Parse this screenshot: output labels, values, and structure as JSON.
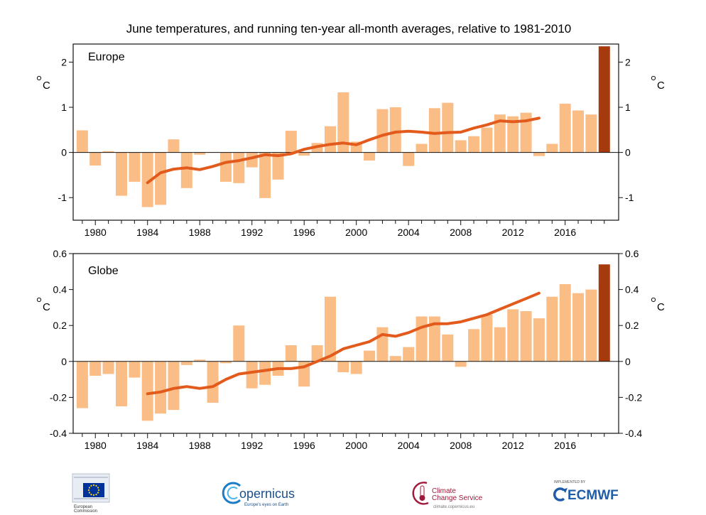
{
  "colors": {
    "bar": "#fbbd86",
    "bar_highlight": "#a63a0c",
    "running_line": "#e25a1c",
    "axis": "#111111",
    "eu_blue": "#003399",
    "eu_star": "#ffdd00",
    "ecmwf_blue": "#1f5da8",
    "c3s_red": "#a0193a"
  },
  "chart_data": [
    {
      "type": "bar",
      "title": "June temperatures, and running ten-year all-month averages, relative to 1981-2010",
      "panel_label": "Europe",
      "ylabel": "°C",
      "ylim": [
        -1.5,
        2.4
      ],
      "yticks": [
        -1,
        0,
        1,
        2
      ],
      "ytick_labels": [
        "-1",
        "0",
        "1",
        "2"
      ],
      "xticks": [
        1980,
        1984,
        1988,
        1992,
        1996,
        2000,
        2004,
        2008,
        2012,
        2016
      ],
      "xtick_labels": [
        "1980",
        "1984",
        "1988",
        "1992",
        "1996",
        "2000",
        "2004",
        "2008",
        "2012",
        "2016"
      ],
      "grid": false,
      "legend": "none",
      "years": [
        1979,
        1980,
        1981,
        1982,
        1983,
        1984,
        1985,
        1986,
        1987,
        1988,
        1989,
        1990,
        1991,
        1992,
        1993,
        1994,
        1995,
        1996,
        1997,
        1998,
        1999,
        2000,
        2001,
        2002,
        2003,
        2004,
        2005,
        2006,
        2007,
        2008,
        2009,
        2010,
        2011,
        2012,
        2013,
        2014,
        2015,
        2016,
        2017,
        2018,
        2019
      ],
      "values": [
        0.49,
        -0.29,
        0.03,
        -0.96,
        -0.65,
        -1.21,
        -1.16,
        0.29,
        -0.79,
        -0.05,
        0.01,
        -0.65,
        -0.68,
        -0.33,
        -1.01,
        -0.6,
        0.48,
        -0.07,
        0.21,
        0.58,
        1.33,
        0.24,
        -0.18,
        0.96,
        1.0,
        -0.3,
        0.19,
        0.98,
        1.1,
        0.27,
        0.36,
        0.55,
        0.84,
        0.8,
        0.88,
        -0.08,
        0.19,
        1.08,
        0.93,
        0.84,
        2.35
      ],
      "highlight_year": 2019,
      "running_average": {
        "x": [
          1984,
          1985,
          1986,
          1987,
          1988,
          1989,
          1990,
          1991,
          1992,
          1993,
          1994,
          1995,
          1996,
          1997,
          1998,
          1999,
          2000,
          2001,
          2002,
          2003,
          2004,
          2005,
          2006,
          2007,
          2008,
          2009,
          2010,
          2011,
          2012,
          2013,
          2014
        ],
        "y": [
          -0.67,
          -0.45,
          -0.37,
          -0.34,
          -0.38,
          -0.31,
          -0.22,
          -0.18,
          -0.12,
          -0.05,
          -0.07,
          -0.03,
          0.07,
          0.13,
          0.18,
          0.21,
          0.17,
          0.28,
          0.38,
          0.45,
          0.47,
          0.45,
          0.42,
          0.44,
          0.45,
          0.54,
          0.61,
          0.7,
          0.68,
          0.7,
          0.76
        ]
      }
    },
    {
      "type": "bar",
      "panel_label": "Globe",
      "ylabel": "°C",
      "ylim": [
        -0.4,
        0.6
      ],
      "yticks": [
        -0.4,
        -0.2,
        0,
        0.2,
        0.4,
        0.6
      ],
      "ytick_labels": [
        "-0.4",
        "-0.2",
        "0",
        "0.2",
        "0.4",
        "0.6"
      ],
      "xticks": [
        1980,
        1984,
        1988,
        1992,
        1996,
        2000,
        2004,
        2008,
        2012,
        2016
      ],
      "xtick_labels": [
        "1980",
        "1984",
        "1988",
        "1992",
        "1996",
        "2000",
        "2004",
        "2008",
        "2012",
        "2016"
      ],
      "grid": false,
      "legend": "none",
      "years": [
        1979,
        1980,
        1981,
        1982,
        1983,
        1984,
        1985,
        1986,
        1987,
        1988,
        1989,
        1990,
        1991,
        1992,
        1993,
        1994,
        1995,
        1996,
        1997,
        1998,
        1999,
        2000,
        2001,
        2002,
        2003,
        2004,
        2005,
        2006,
        2007,
        2008,
        2009,
        2010,
        2011,
        2012,
        2013,
        2014,
        2015,
        2016,
        2017,
        2018,
        2019
      ],
      "values": [
        -0.26,
        -0.08,
        -0.07,
        -0.25,
        -0.09,
        -0.33,
        -0.29,
        -0.27,
        -0.02,
        0.01,
        -0.23,
        -0.01,
        0.2,
        -0.15,
        -0.13,
        -0.08,
        0.09,
        -0.14,
        0.09,
        0.36,
        -0.06,
        -0.07,
        0.06,
        0.19,
        0.03,
        0.08,
        0.25,
        0.25,
        0.15,
        -0.03,
        0.18,
        0.26,
        0.19,
        0.29,
        0.28,
        0.24,
        0.36,
        0.43,
        0.38,
        0.4,
        0.54
      ],
      "highlight_year": 2019,
      "running_average": {
        "x": [
          1984,
          1985,
          1986,
          1987,
          1988,
          1989,
          1990,
          1991,
          1992,
          1993,
          1994,
          1995,
          1996,
          1997,
          1998,
          1999,
          2000,
          2001,
          2002,
          2003,
          2004,
          2005,
          2006,
          2007,
          2008,
          2009,
          2010,
          2011,
          2012,
          2013,
          2014
        ],
        "y": [
          -0.18,
          -0.17,
          -0.15,
          -0.14,
          -0.15,
          -0.14,
          -0.1,
          -0.07,
          -0.06,
          -0.05,
          -0.04,
          -0.04,
          -0.03,
          0.0,
          0.03,
          0.07,
          0.09,
          0.11,
          0.15,
          0.14,
          0.16,
          0.19,
          0.21,
          0.21,
          0.22,
          0.24,
          0.26,
          0.29,
          0.32,
          0.35,
          0.38
        ]
      }
    }
  ],
  "logos": {
    "european_commission": {
      "line1": "European",
      "line2": "Commission",
      "icon": "eu-flag-icon"
    },
    "copernicus": {
      "name": "opernicus",
      "tagline": "Europe's eyes on Earth",
      "icon": "copernicus-c-icon"
    },
    "c3s": {
      "line1": "Climate",
      "line2": "Change Service",
      "url": "climate.copernicus.eu",
      "icon": "c3s-thermometer-icon"
    },
    "ecmwf": {
      "prefix": "IMPLEMENTED BY",
      "name": "ECMWF",
      "icon": "ecmwf-arrows-icon"
    }
  }
}
